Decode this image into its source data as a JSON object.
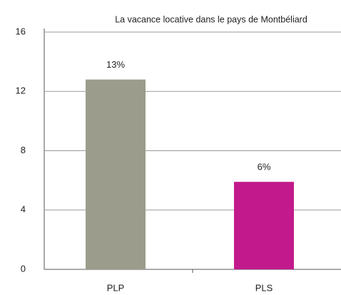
{
  "chart_data": {
    "type": "bar",
    "title": "La vacance locative dans le pays de Montbéliard",
    "categories": [
      "PLP",
      "PLS"
    ],
    "values": [
      12.8,
      5.9
    ],
    "value_labels": [
      "13%",
      "6%"
    ],
    "colors": [
      "#9c9c8c",
      "#c21a8d"
    ],
    "ylim": [
      0,
      16
    ],
    "yticks": [
      0,
      4,
      8,
      12,
      16
    ],
    "grid": true
  }
}
